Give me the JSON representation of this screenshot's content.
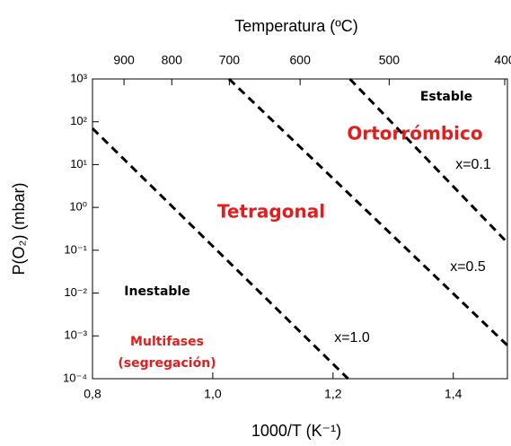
{
  "chart_data": {
    "type": "line",
    "title": "Temperatura (ºC)",
    "x_label": "1000/T (K⁻¹)",
    "y_label": "P(O₂) (mbar)",
    "xlim": [
      0.8,
      1.49
    ],
    "xticks": [
      {
        "value": 0.8,
        "label": "0,8"
      },
      {
        "value": 1.0,
        "label": "1,0"
      },
      {
        "value": 1.2,
        "label": "1,2"
      },
      {
        "value": 1.4,
        "label": "1,4"
      }
    ],
    "x2ticks": [
      900,
      800,
      700,
      600,
      500,
      400
    ],
    "ylim": [
      0.0001,
      1000
    ],
    "log_y": true,
    "yticks": [
      {
        "value": 1000,
        "label": "10³"
      },
      {
        "value": 100,
        "label": "10²"
      },
      {
        "value": 10,
        "label": "10¹"
      },
      {
        "value": 1,
        "label": "10⁰"
      },
      {
        "value": 0.1,
        "label": "10⁻¹"
      },
      {
        "value": 0.01,
        "label": "10⁻²"
      },
      {
        "value": 0.001,
        "label": "10⁻³"
      },
      {
        "value": 0.0001,
        "label": "10⁻⁴"
      }
    ],
    "series": [
      {
        "name": "x=1.0",
        "color": "#000000",
        "x": [
          0.8,
          1.225
        ],
        "values": [
          70,
          0.0001
        ]
      },
      {
        "name": "x=0.5",
        "color": "#000000",
        "x": [
          1.027,
          1.49
        ],
        "values": [
          1000,
          0.0006
        ]
      },
      {
        "name": "x=0.1",
        "color": "#000000",
        "x": [
          1.228,
          1.49
        ],
        "values": [
          1000,
          0.15
        ]
      }
    ],
    "annotations": [
      "Estable",
      "Ortorrómbico",
      "Tetragonal",
      "Inestable",
      "Multifases",
      "(segregación)"
    ]
  }
}
